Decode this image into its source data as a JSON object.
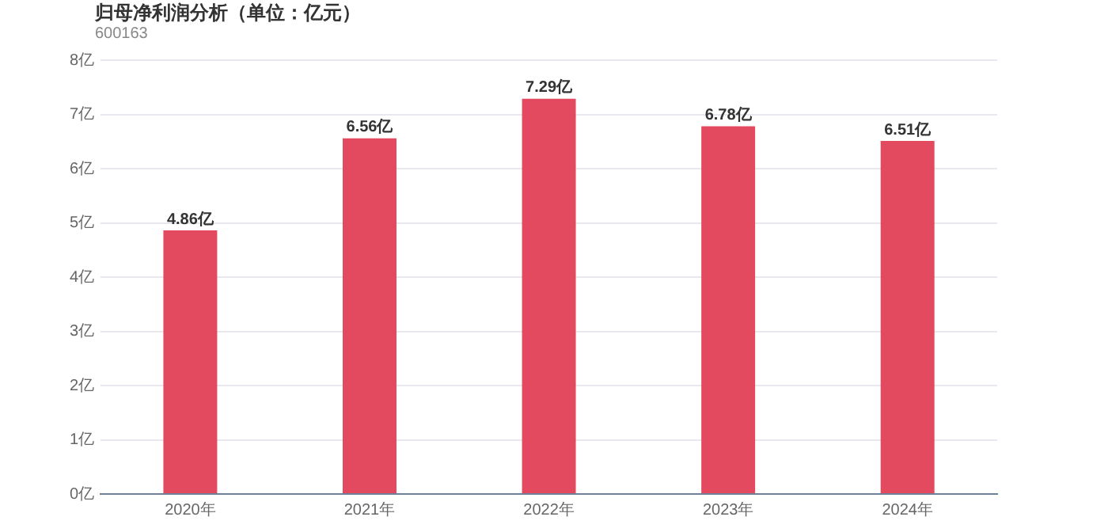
{
  "chart_data": {
    "type": "bar",
    "title": "归母净利润分析（单位：亿元）",
    "subtitle": "600163",
    "categories": [
      "2020年",
      "2021年",
      "2022年",
      "2023年",
      "2024年"
    ],
    "values": [
      4.86,
      6.56,
      7.29,
      6.78,
      6.51
    ],
    "value_labels": [
      "4.86亿",
      "6.56亿",
      "7.29亿",
      "6.78亿",
      "6.51亿"
    ],
    "color": "#e44a5f",
    "ylim": [
      0,
      8
    ],
    "yticks": [
      {
        "value": 0,
        "label": "0亿"
      },
      {
        "value": 1,
        "label": "1亿"
      },
      {
        "value": 2,
        "label": "2亿"
      },
      {
        "value": 3,
        "label": "3亿"
      },
      {
        "value": 4,
        "label": "4亿"
      },
      {
        "value": 5,
        "label": "5亿"
      },
      {
        "value": 6,
        "label": "6亿"
      },
      {
        "value": 7,
        "label": "7亿"
      },
      {
        "value": 8,
        "label": "8亿"
      }
    ],
    "grid": "y",
    "legend": false
  }
}
